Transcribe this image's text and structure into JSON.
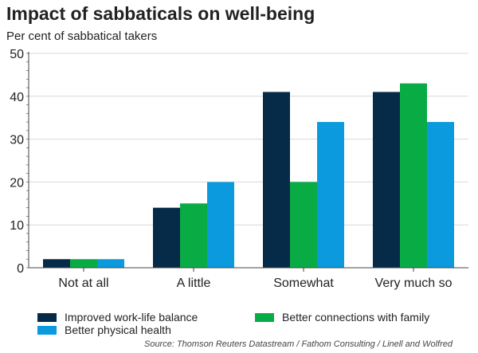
{
  "chart_data": {
    "type": "bar",
    "title": "Impact of sabbaticals on well-being",
    "ylabel": "Per cent of sabbatical takers",
    "xlabel": "",
    "categories": [
      "Not at all",
      "A little",
      "Somewhat",
      "Very much so"
    ],
    "series": [
      {
        "name": "Improved work-life balance",
        "color": "#052b48",
        "values": [
          2,
          14,
          41,
          41
        ]
      },
      {
        "name": "Better connections with family",
        "color": "#09ac44",
        "values": [
          2,
          15,
          20,
          43
        ]
      },
      {
        "name": "Better physical health",
        "color": "#0c9ade",
        "values": [
          2,
          20,
          34,
          34
        ]
      }
    ],
    "ylim": [
      0,
      50
    ],
    "yticks": [
      "0",
      "10",
      "20",
      "30",
      "40",
      "50"
    ],
    "grid": true,
    "legend": "bottom",
    "source": "Source: Thomson Reuters Datastream / Fathom Consulting / Linell and Wolfred"
  }
}
